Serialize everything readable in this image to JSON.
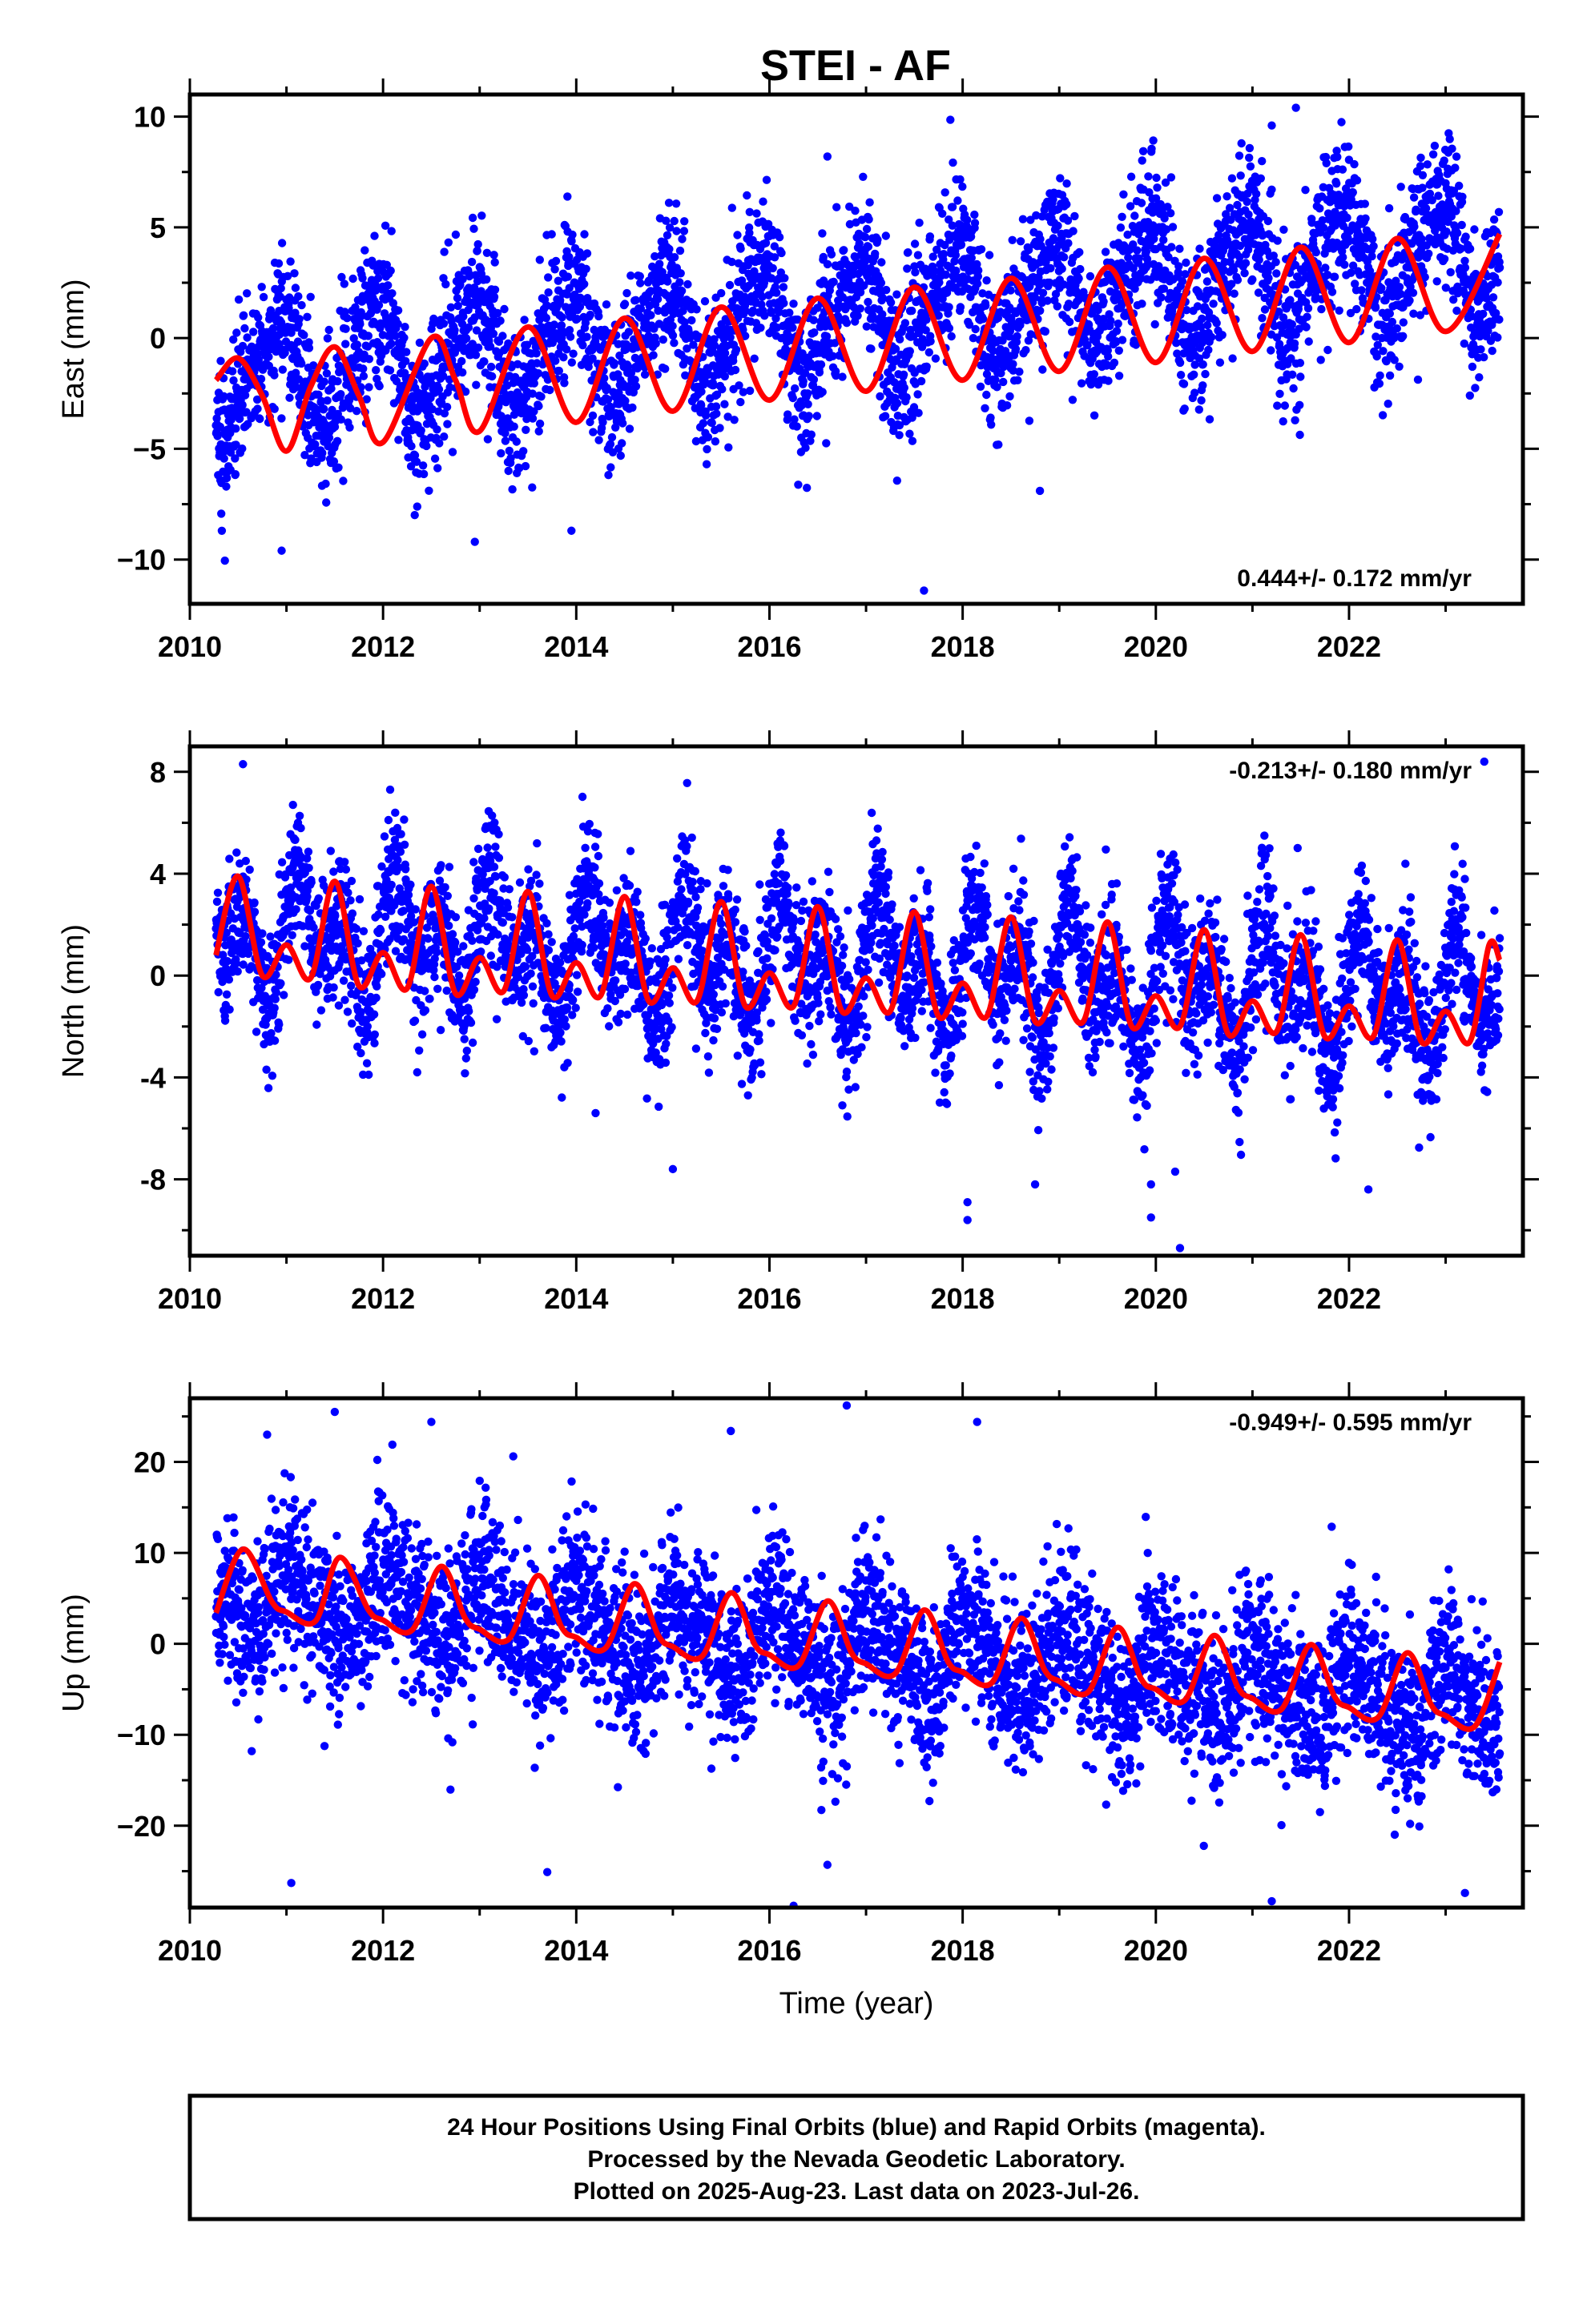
{
  "title": "STEI - AF",
  "colors": {
    "points": "#0000ff",
    "fit": "#ff0000",
    "axes": "#000000"
  },
  "footer": {
    "line1": "24 Hour Positions Using Final Orbits (blue) and Rapid Orbits (magenta).",
    "line2": "Processed by the Nevada Geodetic Laboratory.",
    "line3": "Plotted on 2025-Aug-23. Last data on 2023-Jul-26."
  },
  "chart_data": [
    {
      "type": "scatter",
      "panel": "east",
      "ylabel": "East (mm)",
      "xlabel": "",
      "rate_label": "0.444+/- 0.172 mm/yr",
      "rate_position": "bottom-right",
      "xlim": [
        2010.0,
        2023.8
      ],
      "ylim": [
        -12,
        11
      ],
      "xticks": [
        2010,
        2012,
        2014,
        2016,
        2018,
        2020,
        2022
      ],
      "xtick_labels": [
        "2010",
        "2012",
        "2014",
        "2016",
        "2018",
        "2020",
        "2022"
      ],
      "yticks": [
        -10,
        -5,
        0,
        5,
        10
      ],
      "ytick_labels": [
        "−10",
        "−5",
        "0",
        "5",
        "10"
      ],
      "x_start": 2010.27,
      "x_end": 2023.56,
      "model": {
        "trend_mm_per_yr": 0.444,
        "offset": -1.9,
        "annual_amp": 2.3,
        "annual_phase": 2.2,
        "semiannual_amp": 0.5,
        "semiannual_phase": 0.9,
        "scatter_sd": 1.7
      },
      "fit": {
        "x": [
          2010.27,
          2010.5,
          2010.75,
          2011.0,
          2011.25,
          2011.5,
          2011.75,
          2012.0,
          2012.5,
          2012.75,
          2013.0,
          2013.5,
          2014.0,
          2014.5,
          2015.0,
          2015.5,
          2016.0,
          2016.5,
          2017.0,
          2017.5,
          2018.0,
          2018.5,
          2019.0,
          2019.5,
          2020.0,
          2020.5,
          2021.0,
          2021.5,
          2022.0,
          2022.5,
          2023.0,
          2023.56
        ],
        "y": [
          -1.9,
          -0.9,
          -2.6,
          -5.1,
          -2.2,
          -0.4,
          -2.6,
          -4.7,
          0.0,
          -1.9,
          -4.2,
          0.5,
          -3.8,
          0.9,
          -3.3,
          1.4,
          -2.8,
          1.8,
          -2.4,
          2.3,
          -1.9,
          2.7,
          -1.5,
          3.2,
          -1.1,
          3.6,
          -0.6,
          4.1,
          -0.2,
          4.5,
          0.3,
          4.7
        ]
      },
      "outliers": [
        {
          "x": 2021.2,
          "y": 9.6
        },
        {
          "x": 2021.45,
          "y": 10.4
        },
        {
          "x": 2016.6,
          "y": 8.2
        },
        {
          "x": 2017.6,
          "y": -11.4
        },
        {
          "x": 2010.95,
          "y": -9.6
        },
        {
          "x": 2012.95,
          "y": -9.2
        },
        {
          "x": 2013.95,
          "y": -8.7
        },
        {
          "x": 2018.8,
          "y": -6.9
        }
      ]
    },
    {
      "type": "scatter",
      "panel": "north",
      "ylabel": "North (mm)",
      "xlabel": "",
      "rate_label": "-0.213+/- 0.180 mm/yr",
      "rate_position": "top-right",
      "xlim": [
        2010.0,
        2023.8
      ],
      "ylim": [
        -11,
        9
      ],
      "xticks": [
        2010,
        2012,
        2014,
        2016,
        2018,
        2020,
        2022
      ],
      "xtick_labels": [
        "2010",
        "2012",
        "2014",
        "2016",
        "2018",
        "2020",
        "2022"
      ],
      "yticks": [
        -8,
        -4,
        0,
        4,
        8
      ],
      "ytick_labels": [
        "-8",
        "-4",
        "0",
        "4",
        "8"
      ],
      "x_start": 2010.27,
      "x_end": 2023.56,
      "model": {
        "trend_mm_per_yr": -0.213,
        "offset": 1.8,
        "annual_amp": 1.3,
        "annual_phase": 0.2,
        "semiannual_amp": 1.6,
        "semiannual_phase": 0.4,
        "scatter_sd": 1.4
      },
      "fit": {
        "x": [
          2010.27,
          2010.5,
          2010.75,
          2011.0,
          2011.25,
          2011.5,
          2011.75,
          2012.0,
          2012.25,
          2012.5,
          2012.75,
          2013.0,
          2013.25,
          2013.5,
          2013.75,
          2014.0,
          2014.25,
          2014.5,
          2014.75,
          2015.0,
          2015.25,
          2015.5,
          2015.75,
          2016.0,
          2016.25,
          2016.5,
          2016.75,
          2017.0,
          2017.25,
          2017.5,
          2017.75,
          2018.0,
          2018.25,
          2018.5,
          2018.75,
          2019.0,
          2019.25,
          2019.5,
          2019.75,
          2020.0,
          2020.25,
          2020.5,
          2020.75,
          2021.0,
          2021.25,
          2021.5,
          2021.75,
          2022.0,
          2022.25,
          2022.5,
          2022.75,
          2023.0,
          2023.25,
          2023.45,
          2023.56
        ],
        "y": [
          0.8,
          3.9,
          0.0,
          1.2,
          -0.1,
          3.7,
          -0.4,
          0.9,
          -0.5,
          3.5,
          -0.7,
          0.7,
          -0.6,
          3.3,
          -0.8,
          0.5,
          -0.8,
          3.1,
          -1.0,
          0.3,
          -1.0,
          2.9,
          -1.2,
          0.1,
          -1.2,
          2.7,
          -1.4,
          -0.1,
          -1.4,
          2.5,
          -1.6,
          -0.3,
          -1.6,
          2.3,
          -1.8,
          -0.6,
          -1.8,
          2.1,
          -2.0,
          -0.8,
          -2.0,
          1.8,
          -2.3,
          -1.0,
          -2.2,
          1.6,
          -2.4,
          -1.2,
          -2.4,
          1.4,
          -2.6,
          -1.4,
          -2.6,
          1.2,
          0.6
        ]
      },
      "outliers": [
        {
          "x": 2010.55,
          "y": 8.3
        },
        {
          "x": 2023.4,
          "y": 8.4
        },
        {
          "x": 2015.0,
          "y": -7.6
        },
        {
          "x": 2018.05,
          "y": -9.6
        },
        {
          "x": 2018.05,
          "y": -8.9
        },
        {
          "x": 2018.75,
          "y": -8.2
        },
        {
          "x": 2019.95,
          "y": -9.5
        },
        {
          "x": 2019.95,
          "y": -8.2
        },
        {
          "x": 2020.25,
          "y": -10.7
        },
        {
          "x": 2020.2,
          "y": -7.7
        },
        {
          "x": 2022.2,
          "y": -8.4
        },
        {
          "x": 2014.2,
          "y": -5.4
        }
      ]
    },
    {
      "type": "scatter",
      "panel": "up",
      "ylabel": "Up (mm)",
      "xlabel": "Time (year)",
      "rate_label": "-0.949+/- 0.595 mm/yr",
      "rate_position": "top-right",
      "xlim": [
        2010.0,
        2023.8
      ],
      "ylim": [
        -29,
        27
      ],
      "xticks": [
        2010,
        2012,
        2014,
        2016,
        2018,
        2020,
        2022
      ],
      "xtick_labels": [
        "2010",
        "2012",
        "2014",
        "2016",
        "2018",
        "2020",
        "2022"
      ],
      "yticks": [
        -20,
        -10,
        0,
        10,
        20
      ],
      "ytick_labels": [
        "−20",
        "−10",
        "0",
        "10",
        "20"
      ],
      "x_start": 2010.27,
      "x_end": 2023.56,
      "model": {
        "trend_mm_per_yr": -0.949,
        "offset": 5.5,
        "annual_amp": 3.6,
        "annual_phase": 1.1,
        "semiannual_amp": 1.2,
        "semiannual_phase": 2.0,
        "scatter_sd": 4.5
      },
      "fit": {
        "x": [
          2010.27,
          2010.55,
          2010.85,
          2011.0,
          2011.3,
          2011.55,
          2011.85,
          2012.0,
          2012.3,
          2012.6,
          2012.85,
          2013.0,
          2013.3,
          2013.6,
          2013.85,
          2014.0,
          2014.3,
          2014.6,
          2014.85,
          2015.0,
          2015.3,
          2015.6,
          2015.85,
          2016.0,
          2016.3,
          2016.6,
          2016.85,
          2017.0,
          2017.3,
          2017.6,
          2017.85,
          2018.0,
          2018.3,
          2018.6,
          2018.85,
          2019.0,
          2019.3,
          2019.6,
          2019.85,
          2020.0,
          2020.3,
          2020.6,
          2020.85,
          2021.0,
          2021.3,
          2021.6,
          2021.85,
          2022.0,
          2022.3,
          2022.6,
          2022.85,
          2023.0,
          2023.3,
          2023.56
        ],
        "y": [
          3.4,
          10.4,
          4.6,
          3.5,
          2.5,
          9.5,
          3.7,
          2.6,
          1.5,
          8.5,
          2.8,
          1.6,
          0.5,
          7.5,
          1.8,
          0.7,
          -0.5,
          6.6,
          0.9,
          -0.3,
          -1.4,
          5.6,
          -0.1,
          -1.2,
          -2.4,
          4.7,
          -1.0,
          -2.2,
          -3.3,
          3.7,
          -2.0,
          -3.1,
          -4.3,
          2.8,
          -2.9,
          -4.1,
          -5.3,
          1.8,
          -3.9,
          -5.0,
          -6.2,
          0.9,
          -4.8,
          -6.0,
          -7.2,
          -0.1,
          -5.8,
          -7.0,
          -8.1,
          -1.0,
          -6.7,
          -7.9,
          -9.1,
          -2.0
        ]
      },
      "outliers": [
        {
          "x": 2011.05,
          "y": -26.3
        },
        {
          "x": 2016.25,
          "y": -28.8
        },
        {
          "x": 2016.8,
          "y": 26.2
        },
        {
          "x": 2011.5,
          "y": 25.5
        },
        {
          "x": 2012.5,
          "y": 24.4
        },
        {
          "x": 2018.15,
          "y": 24.4
        },
        {
          "x": 2021.2,
          "y": -28.3
        },
        {
          "x": 2023.2,
          "y": -27.4
        },
        {
          "x": 2013.7,
          "y": -25.1
        },
        {
          "x": 2010.8,
          "y": 23.0
        },
        {
          "x": 2015.6,
          "y": 23.4
        },
        {
          "x": 2016.6,
          "y": -24.3
        }
      ]
    }
  ]
}
